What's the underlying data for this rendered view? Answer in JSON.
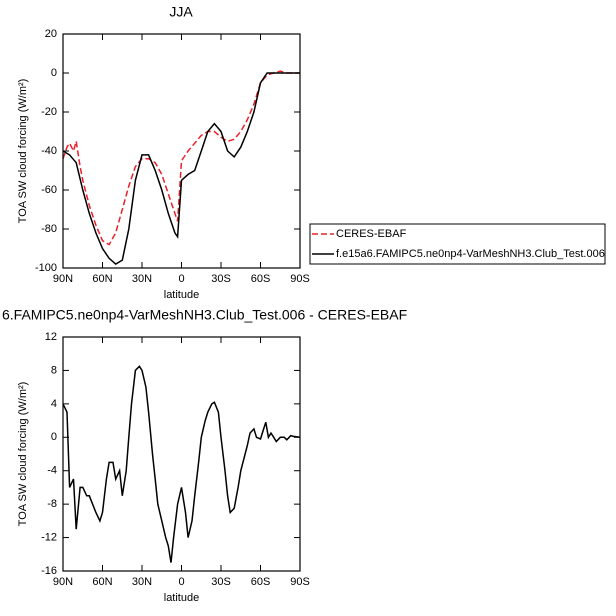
{
  "chart_data": [
    {
      "type": "line",
      "title": "JJA",
      "x_label": "latitude",
      "y_label": "TOA SW cloud forcing (W/m²)",
      "xlim": [
        90,
        -90
      ],
      "xticks": [
        {
          "value": 90,
          "label": "90N"
        },
        {
          "value": 60,
          "label": "60N"
        },
        {
          "value": 30,
          "label": "30N"
        },
        0,
        {
          "value": -30,
          "label": "30S"
        },
        {
          "value": -60,
          "label": "60S"
        },
        {
          "value": -90,
          "label": "90S"
        }
      ],
      "ylim": [
        -100,
        20
      ],
      "yticks": [
        20,
        0,
        -20,
        -40,
        -60,
        -80,
        -100
      ],
      "legend": "right",
      "series": [
        {
          "name": "CERES-EBAF",
          "color": "#e8202a",
          "style": "dashed",
          "x": [
            90,
            87,
            85,
            82,
            80,
            77,
            75,
            70,
            65,
            60,
            55,
            50,
            45,
            40,
            35,
            30,
            25,
            20,
            15,
            10,
            5,
            3,
            0,
            -5,
            -10,
            -15,
            -20,
            -25,
            -30,
            -35,
            -40,
            -45,
            -50,
            -55,
            -60,
            -65,
            -70,
            -75,
            -80,
            -85,
            -90
          ],
          "values": [
            -44,
            -38,
            -36,
            -40,
            -35,
            -48,
            -55,
            -68,
            -78,
            -86,
            -88,
            -82,
            -70,
            -58,
            -48,
            -44,
            -44,
            -46,
            -52,
            -62,
            -72,
            -76,
            -45,
            -40,
            -36,
            -32,
            -30,
            -30,
            -33,
            -35,
            -34,
            -30,
            -24,
            -16,
            -5,
            -1,
            0,
            1,
            0,
            0,
            0
          ]
        },
        {
          "name": "f.e15a6.FAMIPC5.ne0np4-VarMeshNH3.Club_Test.006",
          "color": "#000000",
          "style": "solid",
          "x": [
            90,
            85,
            80,
            75,
            70,
            65,
            60,
            55,
            50,
            45,
            40,
            35,
            30,
            25,
            20,
            15,
            10,
            5,
            3,
            0,
            -5,
            -10,
            -15,
            -20,
            -25,
            -30,
            -35,
            -40,
            -45,
            -50,
            -55,
            -60,
            -65,
            -70,
            -75,
            -80,
            -85,
            -90
          ],
          "values": [
            -40,
            -42,
            -46,
            -60,
            -72,
            -82,
            -90,
            -95,
            -98,
            -96,
            -80,
            -55,
            -42,
            -42,
            -50,
            -60,
            -72,
            -82,
            -84,
            -55,
            -52,
            -50,
            -40,
            -30,
            -26,
            -30,
            -40,
            -43,
            -38,
            -30,
            -20,
            -5,
            0,
            0,
            0,
            0,
            0,
            0
          ]
        }
      ]
    },
    {
      "type": "line",
      "title": "6.FAMIPC5.ne0np4-VarMeshNH3.Club_Test.006 - CERES-EBAF",
      "x_label": "latitude",
      "y_label": "TOA SW cloud forcing (W/m²)",
      "xlim": [
        90,
        -90
      ],
      "xticks": [
        {
          "value": 90,
          "label": "90N"
        },
        {
          "value": 60,
          "label": "60N"
        },
        {
          "value": 30,
          "label": "30N"
        },
        0,
        {
          "value": -30,
          "label": "30S"
        },
        {
          "value": -60,
          "label": "60S"
        },
        {
          "value": -90,
          "label": "90S"
        }
      ],
      "ylim": [
        -16,
        12
      ],
      "yticks": [
        12,
        8,
        4,
        0,
        -4,
        -8,
        -12,
        -16
      ],
      "series": [
        {
          "color": "#000000",
          "style": "solid",
          "x": [
            90,
            87,
            85,
            82,
            80,
            77,
            75,
            72,
            70,
            65,
            62,
            60,
            57,
            55,
            52,
            50,
            47,
            45,
            42,
            40,
            38,
            35,
            32,
            30,
            27,
            25,
            22,
            20,
            18,
            15,
            12,
            10,
            8,
            6,
            3,
            0,
            -3,
            -5,
            -8,
            -10,
            -13,
            -15,
            -18,
            -20,
            -23,
            -25,
            -28,
            -30,
            -33,
            -35,
            -37,
            -40,
            -43,
            -45,
            -50,
            -52,
            -55,
            -57,
            -60,
            -62,
            -64,
            -66,
            -68,
            -70,
            -72,
            -75,
            -78,
            -80,
            -83,
            -85,
            -90
          ],
          "values": [
            4,
            3,
            -6,
            -5,
            -11,
            -6,
            -6,
            -7,
            -7,
            -9,
            -10,
            -9,
            -5,
            -3,
            -3,
            -5,
            -4,
            -7,
            -4,
            0,
            4,
            8,
            8.5,
            8,
            6,
            3,
            -2,
            -5,
            -8,
            -10,
            -12,
            -13,
            -15,
            -12,
            -8,
            -6,
            -9,
            -12,
            -10,
            -7,
            -3,
            0,
            2,
            3,
            4,
            4.2,
            3,
            0,
            -4,
            -7,
            -9,
            -8.5,
            -6,
            -4,
            -1,
            0.5,
            1,
            0,
            -0.2,
            0.8,
            1.8,
            0,
            0.5,
            0,
            -0.5,
            0,
            0,
            -0.3,
            0.2,
            0.1,
            0
          ]
        }
      ]
    }
  ]
}
